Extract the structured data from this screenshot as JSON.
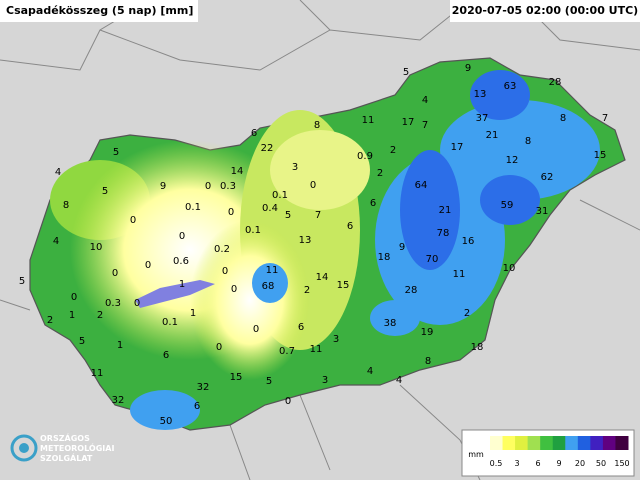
{
  "header": {
    "title": "Csapadékösszeg (5 nap) [mm]",
    "timestamp": "2020-07-05 02:00 (00:00 UTC)"
  },
  "stations": [
    5,
    9,
    28,
    13,
    63,
    4,
    37,
    8,
    7,
    11,
    17,
    7,
    8,
    6,
    22,
    17,
    21,
    8,
    15,
    5,
    0.9,
    2,
    12,
    3,
    14,
    4,
    9,
    0,
    0.3,
    0,
    2,
    64,
    62,
    8,
    5,
    0.1,
    0.1,
    0.4,
    5,
    7,
    6,
    21,
    59,
    31,
    0,
    0,
    13,
    6,
    0.1,
    4,
    10,
    0,
    0.2,
    78,
    16,
    9,
    0.6,
    0,
    0,
    18,
    70,
    10,
    11,
    5,
    0,
    1,
    0,
    68,
    14,
    15,
    2,
    11,
    28,
    0,
    0.3,
    0,
    2,
    1,
    2,
    0.1,
    1,
    0,
    6,
    38,
    19,
    2,
    5,
    1,
    3,
    0,
    0.7,
    11,
    18,
    6,
    8,
    11,
    15,
    5,
    3,
    4,
    4,
    32,
    32,
    6,
    0,
    50
  ],
  "legend": {
    "unit": "mm",
    "labels": [
      0.5,
      3,
      6,
      9,
      20,
      50,
      150
    ]
  },
  "logo": {
    "lines": [
      "ORSZÁGOS",
      "METEOROLÓGIAI",
      "SZOLGÁLAT"
    ]
  }
}
